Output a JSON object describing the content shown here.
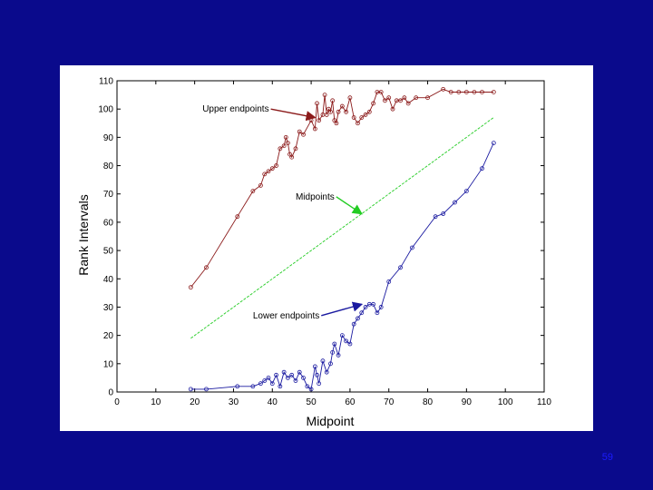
{
  "slide": {
    "page_number": "59"
  },
  "colors": {
    "background": "#0a0a8c",
    "upper": "#8b1a1a",
    "mid": "#22cc22",
    "lower": "#1a1aa0"
  },
  "chart_data": {
    "type": "line",
    "title": "",
    "xlabel": "Midpoint",
    "ylabel": "Rank Intervals",
    "xlim": [
      0,
      110
    ],
    "ylim": [
      0,
      110
    ],
    "xticks": [
      0,
      10,
      20,
      30,
      40,
      50,
      60,
      70,
      80,
      90,
      100,
      110
    ],
    "yticks": [
      0,
      10,
      20,
      30,
      40,
      50,
      60,
      70,
      80,
      90,
      100,
      110
    ],
    "grid": false,
    "series": [
      {
        "key": "upper",
        "name": "Upper endpoints",
        "marker": "circle",
        "x": [
          19,
          23,
          31,
          35,
          37,
          38,
          39,
          40,
          41,
          42,
          43,
          43.5,
          44,
          44.5,
          45,
          46,
          47,
          48,
          50,
          51,
          51.5,
          52,
          53,
          53.5,
          54,
          54.5,
          55,
          55.5,
          56,
          56.5,
          57,
          58,
          59,
          60,
          61,
          62,
          63,
          64,
          65,
          66,
          67,
          68,
          69,
          70,
          71,
          72,
          73,
          74,
          75,
          77,
          80,
          84,
          86,
          88,
          90,
          92,
          94,
          97
        ],
        "y": [
          37,
          44,
          62,
          71,
          73,
          77,
          78,
          79,
          80,
          86,
          87,
          90,
          88,
          84,
          83,
          86,
          92,
          91,
          96,
          93,
          102,
          96,
          98,
          105,
          98,
          100,
          99,
          103,
          96,
          95,
          99,
          101,
          99,
          104,
          97,
          95,
          97,
          98,
          99,
          102,
          106,
          106,
          103,
          104,
          100,
          103,
          103,
          104,
          102,
          104,
          104,
          107,
          106,
          106,
          106,
          106,
          106,
          106
        ]
      },
      {
        "key": "mid",
        "name": "Midpoints",
        "marker": "none",
        "x": [
          19,
          97
        ],
        "y": [
          19,
          97
        ]
      },
      {
        "key": "lower",
        "name": "Lower endpoints",
        "marker": "circle",
        "x": [
          19,
          23,
          31,
          35,
          37,
          38,
          39,
          40,
          41,
          42,
          43,
          44,
          45,
          46,
          47,
          48,
          49,
          50,
          51,
          51.5,
          52,
          53,
          54,
          55,
          55.5,
          56,
          57,
          58,
          59,
          60,
          61,
          62,
          63,
          64,
          65,
          66,
          67,
          68,
          70,
          73,
          76,
          82,
          84,
          87,
          90,
          94,
          97
        ],
        "y": [
          1,
          1,
          2,
          2,
          3,
          4,
          5,
          3,
          6,
          2,
          7,
          5,
          6,
          4,
          7,
          5,
          2,
          1,
          9,
          6,
          3,
          11,
          7,
          10,
          14,
          17,
          13,
          20,
          18,
          17,
          24,
          26,
          28,
          30,
          31,
          31,
          28,
          30,
          39,
          44,
          51,
          62,
          63,
          67,
          71,
          79,
          88
        ]
      }
    ],
    "annotations": [
      {
        "text": "Upper endpoints",
        "series": "upper",
        "label_at": [
          22,
          100
        ],
        "arrow_to": [
          51,
          97
        ]
      },
      {
        "text": "Midpoints",
        "series": "mid",
        "label_at": [
          46,
          69
        ],
        "arrow_to": [
          63,
          63
        ]
      },
      {
        "text": "Lower endpoints",
        "series": "lower",
        "label_at": [
          35,
          27
        ],
        "arrow_to": [
          63,
          31
        ]
      }
    ]
  }
}
